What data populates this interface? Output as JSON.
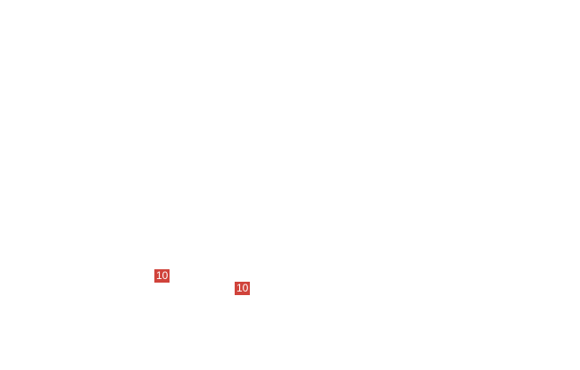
{
  "badge_color": "#d0433b",
  "badges": [
    {
      "label": "10"
    },
    {
      "label": "10"
    }
  ]
}
